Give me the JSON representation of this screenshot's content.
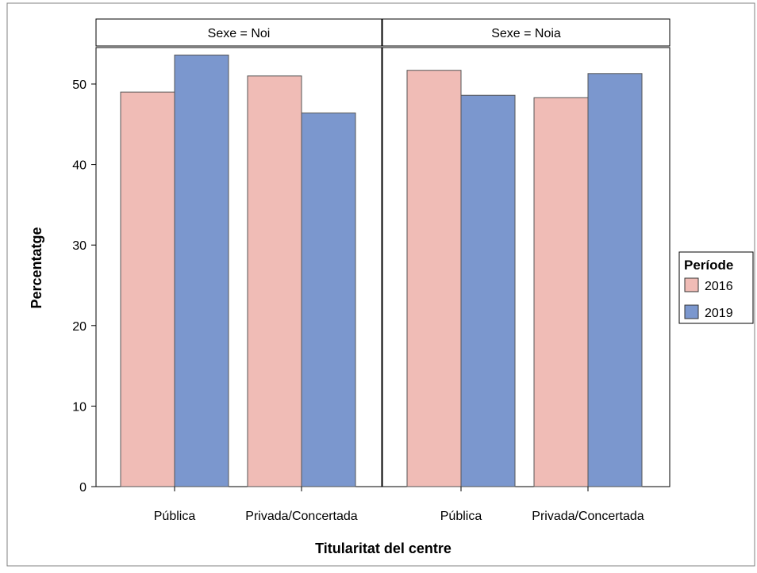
{
  "chart_data": {
    "type": "bar",
    "xlabel": "Titularitat del centre",
    "ylabel": "Percentatge",
    "ylim": [
      0,
      55
    ],
    "yticks": [
      0,
      10,
      20,
      30,
      40,
      50
    ],
    "grid": false,
    "legend": {
      "title": "Període",
      "placement": "right",
      "entries": [
        {
          "label": "2016",
          "color": "#F0BCB6"
        },
        {
          "label": "2019",
          "color": "#7B97CE"
        }
      ]
    },
    "categories": [
      "Pública",
      "Privada/Concertada"
    ],
    "panels": [
      {
        "label": "Sexe = Noi",
        "series": [
          {
            "name": "2016",
            "values": [
              49.0,
              51.0
            ]
          },
          {
            "name": "2019",
            "values": [
              53.6,
              46.4
            ]
          }
        ]
      },
      {
        "label": "Sexe = Noia",
        "series": [
          {
            "name": "2016",
            "values": [
              51.7,
              48.3
            ]
          },
          {
            "name": "2019",
            "values": [
              48.6,
              51.3
            ]
          }
        ]
      }
    ]
  }
}
